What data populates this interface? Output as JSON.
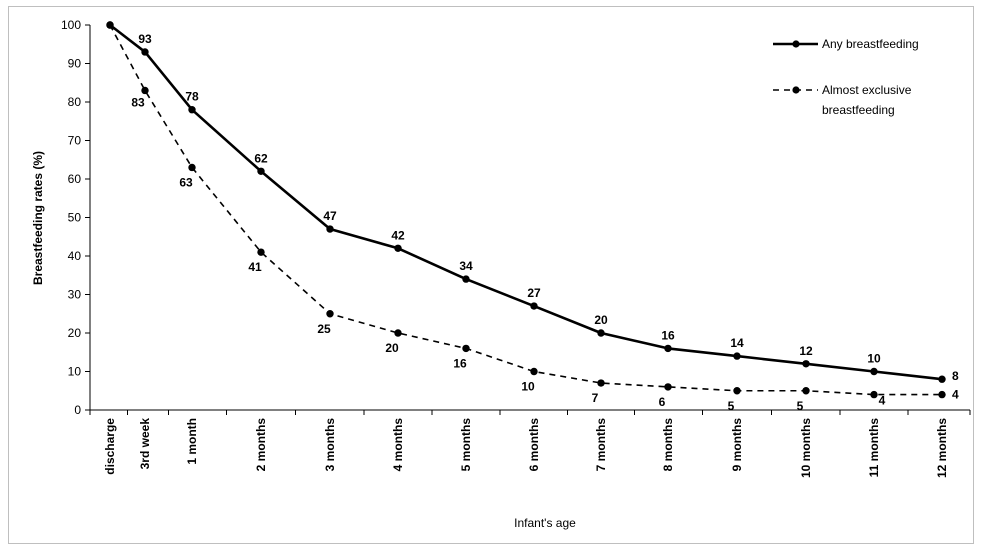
{
  "chart_data": {
    "type": "line",
    "title": "",
    "xlabel": "Infant's age",
    "ylabel": "Breastfeeding rates (%)",
    "ylim": [
      0,
      100
    ],
    "yticks": [
      0,
      10,
      20,
      30,
      40,
      50,
      60,
      70,
      80,
      90,
      100
    ],
    "grid": false,
    "legend_position": "top-right",
    "categories": [
      "discharge",
      "3rd week",
      "1 month",
      "2 months",
      "3 months",
      "4 months",
      "5 months",
      "6 months",
      "7 months",
      "8 months",
      "9 months",
      "10 months",
      "11 months",
      "12 months"
    ],
    "series": [
      {
        "name": "Any breastfeeding",
        "style": "solid",
        "color": "#000000",
        "values": [
          100,
          93,
          78,
          62,
          47,
          42,
          34,
          27,
          20,
          16,
          14,
          12,
          10,
          8
        ],
        "labels": [
          "",
          "93",
          "78",
          "62",
          "47",
          "42",
          "34",
          "27",
          "20",
          "16",
          "14",
          "12",
          "10",
          "8"
        ]
      },
      {
        "name": "Almost exclusive breastfeeding",
        "style": "dashed",
        "color": "#000000",
        "values": [
          100,
          83,
          63,
          41,
          25,
          20,
          16,
          10,
          7,
          6,
          5,
          5,
          4,
          4
        ],
        "labels": [
          "",
          "83",
          "63",
          "41",
          "25",
          "20",
          "16",
          "10",
          "7",
          "6",
          "5",
          "5",
          "4",
          "4"
        ]
      }
    ],
    "legend": {
      "entry1": "Any breastfeeding",
      "entry2_line1": "Almost exclusive",
      "entry2_line2": "breastfeeding"
    }
  }
}
